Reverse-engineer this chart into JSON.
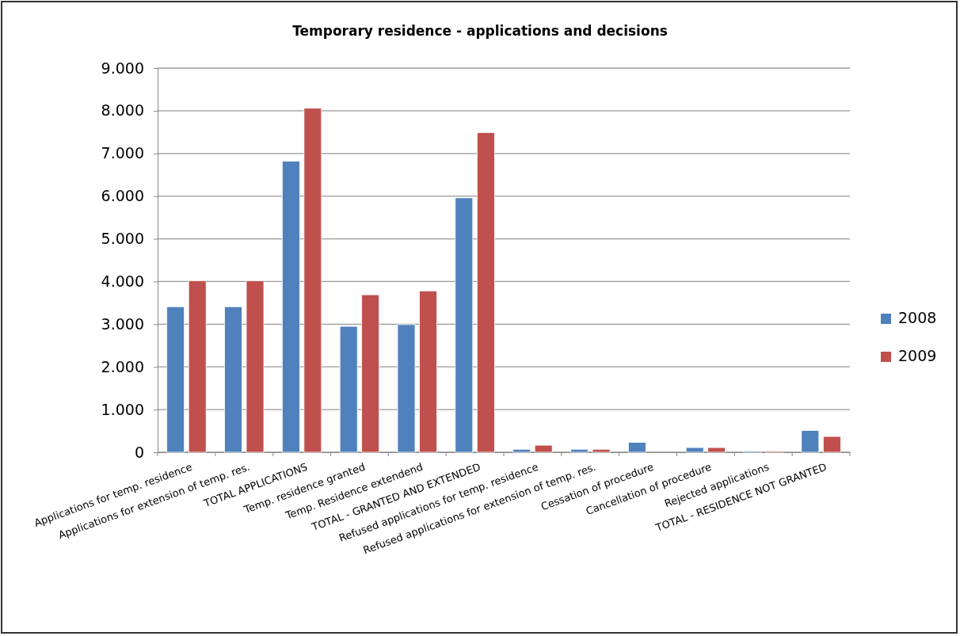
{
  "chart_data": {
    "type": "bar",
    "title": "Temporary residence - applications and decisions",
    "categories": [
      "Applications for temp. residence",
      "Applications for extension of temp. res.",
      "TOTAL APPLICATIONS",
      "Temp. residence granted",
      "Temp. Residence extendend",
      "TOTAL - GRANTED AND EXTENDED",
      "Refused applications for temp. residence",
      "Refused applications for extension of temp. res.",
      "Cessation of procedure",
      "Cancellation of procedure",
      "Rejected applications",
      "TOTAL - RESIDENCE NOT GRANTED"
    ],
    "series": [
      {
        "name": "2008",
        "color": "#4f81bd",
        "values": [
          3410,
          3410,
          6820,
          2950,
          2990,
          5960,
          70,
          70,
          230,
          110,
          25,
          510
        ]
      },
      {
        "name": "2009",
        "color": "#c0504d",
        "values": [
          4020,
          4020,
          8060,
          3690,
          3780,
          7490,
          165,
          70,
          0,
          110,
          25,
          370
        ]
      }
    ],
    "ylim": [
      0,
      9000
    ],
    "yticks": [
      {
        "value": 0,
        "label": "0"
      },
      {
        "value": 1000,
        "label": "1.000"
      },
      {
        "value": 2000,
        "label": "2.000"
      },
      {
        "value": 3000,
        "label": "3.000"
      },
      {
        "value": 4000,
        "label": "4.000"
      },
      {
        "value": 5000,
        "label": "5.000"
      },
      {
        "value": 6000,
        "label": "6.000"
      },
      {
        "value": 7000,
        "label": "7.000"
      },
      {
        "value": 8000,
        "label": "8.000"
      },
      {
        "value": 9000,
        "label": "9.000"
      }
    ],
    "grid": "y",
    "legend": "right"
  }
}
